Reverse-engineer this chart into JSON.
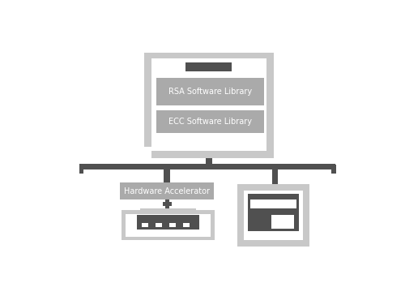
{
  "bg_color": "#ffffff",
  "light_gray": "#c8c8c8",
  "mid_gray": "#aaaaaa",
  "dark_gray": "#505050",
  "white": "#ffffff",
  "rsa_label": "RSA Software Library",
  "ecc_label": "ECC Software Library",
  "hw_label": "Hardware Accelerator",
  "line_color": "#505050",
  "figw": 5.0,
  "figh": 3.65,
  "dpi": 100
}
